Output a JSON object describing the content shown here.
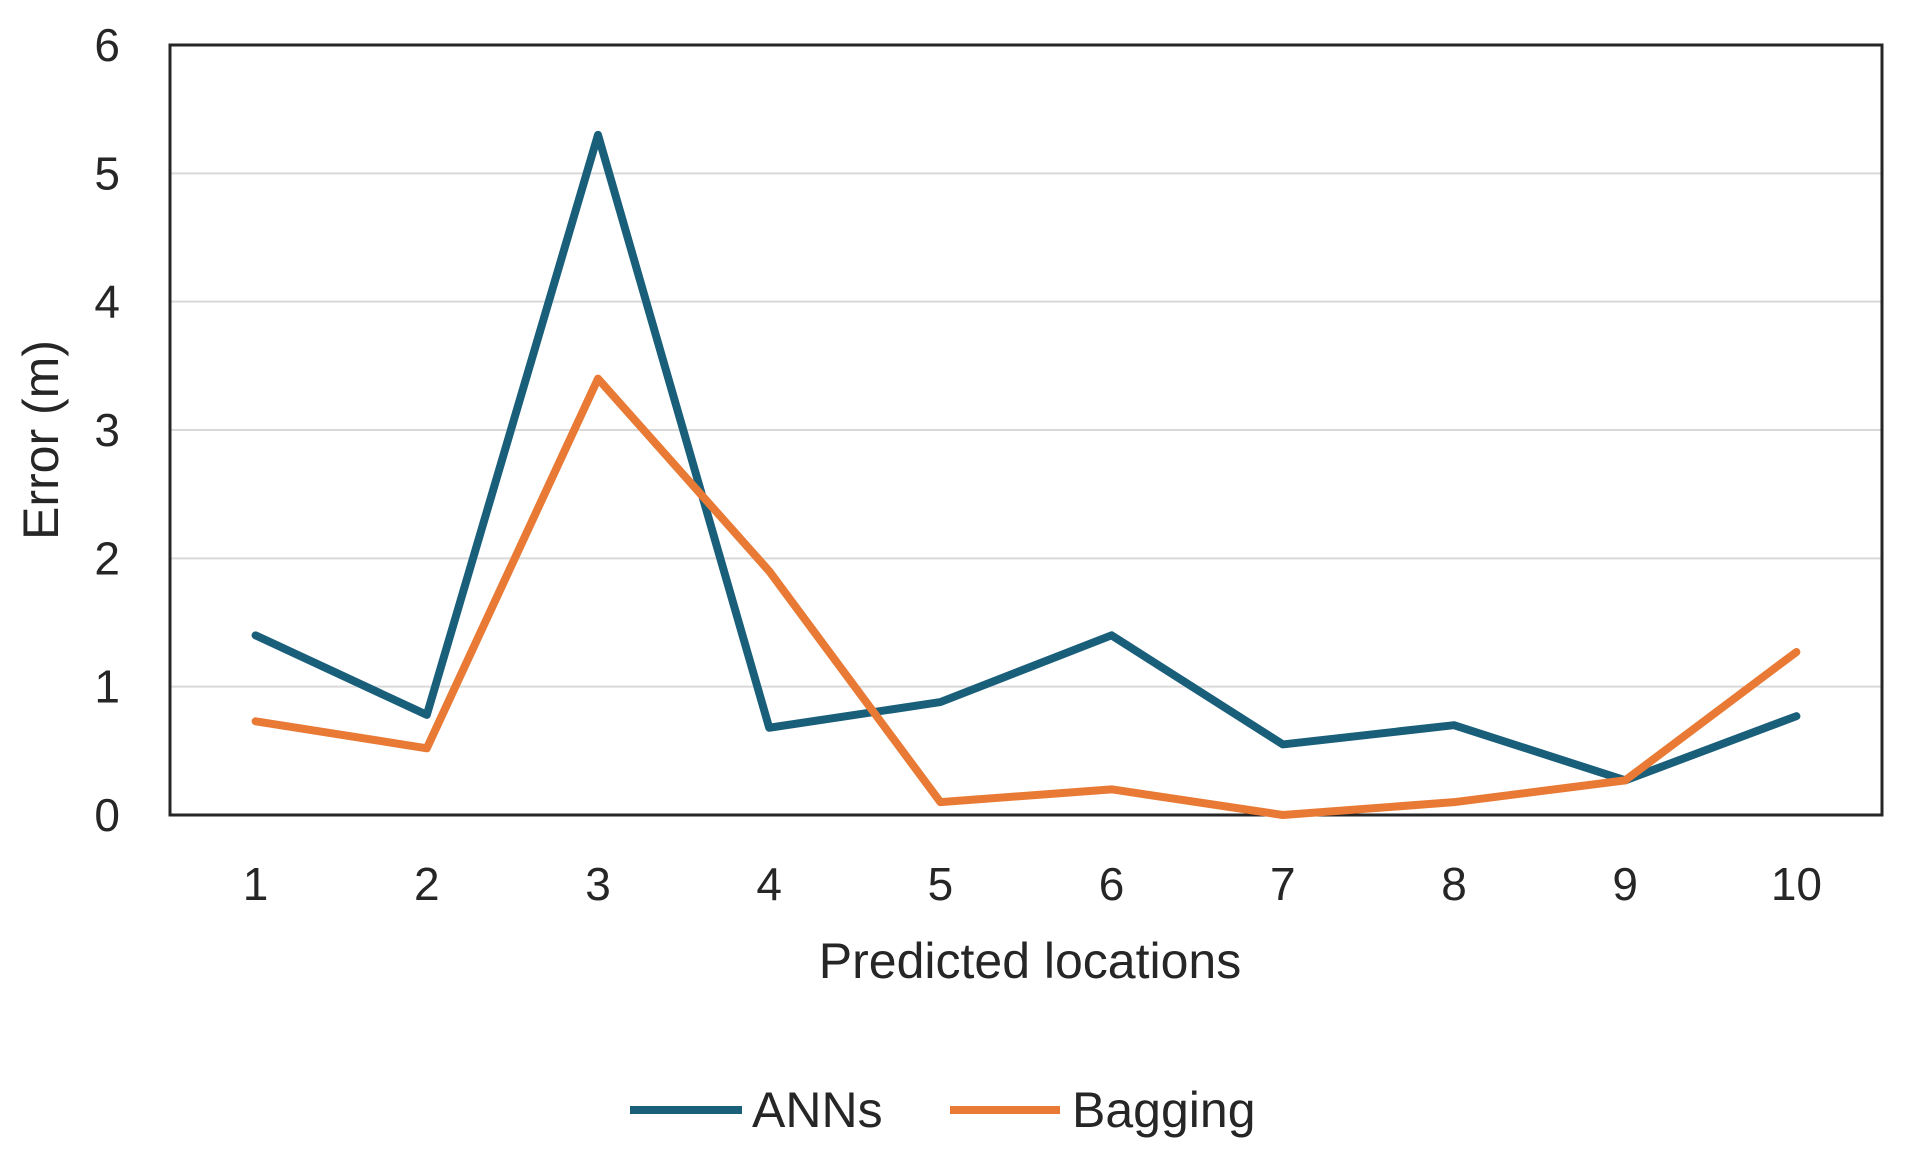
{
  "chart_data": {
    "type": "line",
    "title": "",
    "xlabel": "Predicted locations",
    "ylabel": "Error (m)",
    "categories": [
      "1",
      "2",
      "3",
      "4",
      "5",
      "6",
      "7",
      "8",
      "9",
      "10"
    ],
    "ylim": [
      0,
      6
    ],
    "yticks": [
      "0",
      "1",
      "2",
      "3",
      "4",
      "5",
      "6"
    ],
    "grid": "horizontal",
    "legend_position": "bottom",
    "series": [
      {
        "name": "ANNs",
        "color": "#1a5f7a",
        "values": [
          1.4,
          0.78,
          5.3,
          0.68,
          0.88,
          1.4,
          0.55,
          0.7,
          0.27,
          0.77
        ]
      },
      {
        "name": "Bagging",
        "color": "#e87a35",
        "values": [
          0.73,
          0.52,
          3.4,
          1.9,
          0.1,
          0.2,
          0.0,
          0.1,
          0.27,
          1.27
        ]
      }
    ]
  }
}
